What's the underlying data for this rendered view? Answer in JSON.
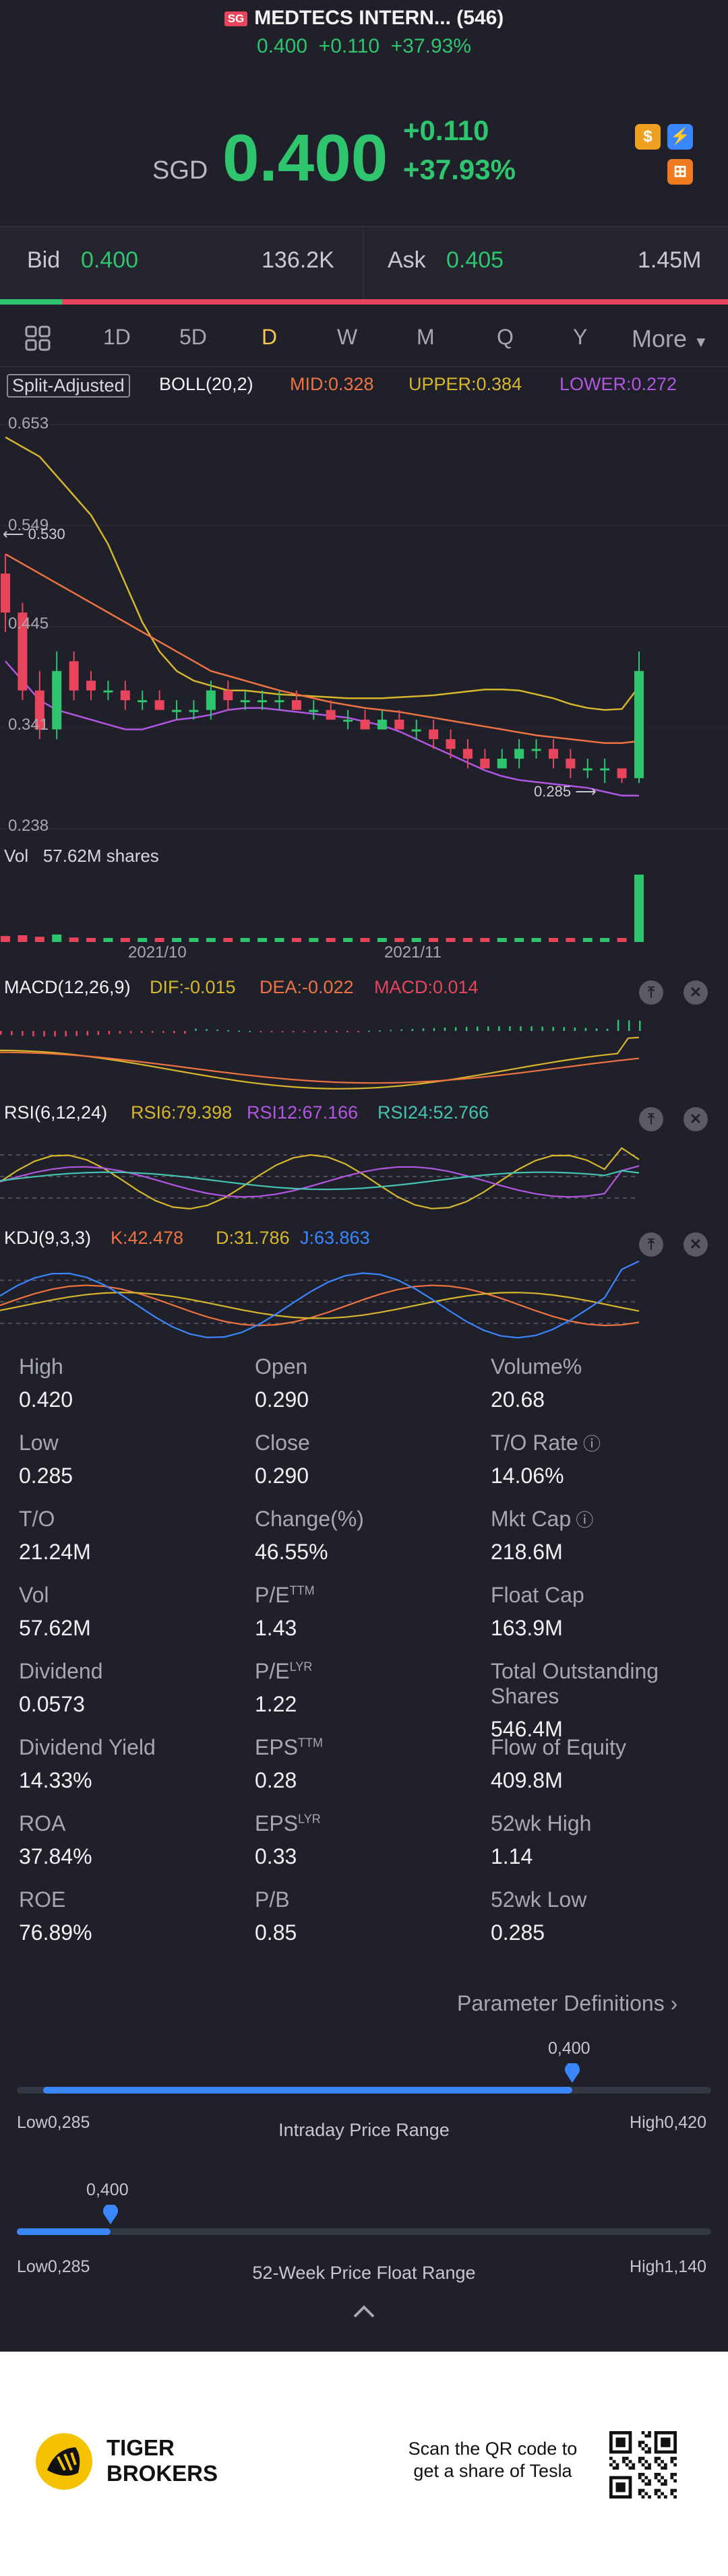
{
  "header": {
    "market_badge": "SG",
    "title": "MEDTECS INTERN... (546)",
    "price": "0.400",
    "change": "+0.110",
    "change_pct": "+37.93%",
    "currency": "SGD"
  },
  "bid_ask": {
    "bid_label": "Bid",
    "bid_price": "0.400",
    "bid_size": "136.2K",
    "ask_label": "Ask",
    "ask_price": "0.405",
    "ask_size": "1.45M"
  },
  "tabs": [
    "1D",
    "5D",
    "D",
    "W",
    "M",
    "Q",
    "Y",
    "More"
  ],
  "active_tab": "D",
  "chart_toolbar": {
    "adjust": "Split-Adjusted",
    "boll": "BOLL(20,2)",
    "mid": "MID:0.328",
    "upper": "UPPER:0.384",
    "lower": "LOWER:0.272"
  },
  "chart_data": [
    {
      "type": "candlestick",
      "title": "",
      "y_ticks": [
        "0.653",
        "0.549",
        "0.445",
        "0.341",
        "0.238"
      ],
      "ylim": [
        0.238,
        0.653
      ],
      "x_ticks": [
        "2021/10",
        "2021/11"
      ],
      "markers": {
        "high": "0.530",
        "low": "0.285"
      },
      "candles": [
        {
          "o": 0.5,
          "c": 0.46,
          "h": 0.52,
          "l": 0.44
        },
        {
          "o": 0.46,
          "c": 0.38,
          "h": 0.47,
          "l": 0.37
        },
        {
          "o": 0.38,
          "c": 0.34,
          "h": 0.4,
          "l": 0.33
        },
        {
          "o": 0.34,
          "c": 0.4,
          "h": 0.42,
          "l": 0.33
        },
        {
          "o": 0.41,
          "c": 0.38,
          "h": 0.42,
          "l": 0.37
        },
        {
          "o": 0.39,
          "c": 0.38,
          "h": 0.4,
          "l": 0.37
        },
        {
          "o": 0.38,
          "c": 0.38,
          "h": 0.39,
          "l": 0.37
        },
        {
          "o": 0.38,
          "c": 0.37,
          "h": 0.39,
          "l": 0.36
        },
        {
          "o": 0.37,
          "c": 0.37,
          "h": 0.38,
          "l": 0.36
        },
        {
          "o": 0.37,
          "c": 0.36,
          "h": 0.38,
          "l": 0.36
        },
        {
          "o": 0.36,
          "c": 0.36,
          "h": 0.37,
          "l": 0.35
        },
        {
          "o": 0.36,
          "c": 0.36,
          "h": 0.37,
          "l": 0.35
        },
        {
          "o": 0.36,
          "c": 0.38,
          "h": 0.39,
          "l": 0.35
        },
        {
          "o": 0.38,
          "c": 0.37,
          "h": 0.39,
          "l": 0.36
        },
        {
          "o": 0.37,
          "c": 0.37,
          "h": 0.38,
          "l": 0.36
        },
        {
          "o": 0.37,
          "c": 0.37,
          "h": 0.38,
          "l": 0.36
        },
        {
          "o": 0.37,
          "c": 0.37,
          "h": 0.38,
          "l": 0.36
        },
        {
          "o": 0.37,
          "c": 0.36,
          "h": 0.38,
          "l": 0.36
        },
        {
          "o": 0.36,
          "c": 0.36,
          "h": 0.37,
          "l": 0.35
        },
        {
          "o": 0.36,
          "c": 0.35,
          "h": 0.37,
          "l": 0.35
        },
        {
          "o": 0.35,
          "c": 0.35,
          "h": 0.36,
          "l": 0.34
        },
        {
          "o": 0.35,
          "c": 0.34,
          "h": 0.36,
          "l": 0.34
        },
        {
          "o": 0.34,
          "c": 0.35,
          "h": 0.36,
          "l": 0.34
        },
        {
          "o": 0.35,
          "c": 0.34,
          "h": 0.36,
          "l": 0.34
        },
        {
          "o": 0.34,
          "c": 0.34,
          "h": 0.35,
          "l": 0.33
        },
        {
          "o": 0.34,
          "c": 0.33,
          "h": 0.35,
          "l": 0.32
        },
        {
          "o": 0.33,
          "c": 0.32,
          "h": 0.34,
          "l": 0.31
        },
        {
          "o": 0.32,
          "c": 0.31,
          "h": 0.33,
          "l": 0.3
        },
        {
          "o": 0.31,
          "c": 0.3,
          "h": 0.32,
          "l": 0.3
        },
        {
          "o": 0.3,
          "c": 0.31,
          "h": 0.32,
          "l": 0.3
        },
        {
          "o": 0.31,
          "c": 0.32,
          "h": 0.33,
          "l": 0.3
        },
        {
          "o": 0.32,
          "c": 0.32,
          "h": 0.33,
          "l": 0.31
        },
        {
          "o": 0.32,
          "c": 0.31,
          "h": 0.33,
          "l": 0.3
        },
        {
          "o": 0.31,
          "c": 0.3,
          "h": 0.32,
          "l": 0.29
        },
        {
          "o": 0.3,
          "c": 0.3,
          "h": 0.31,
          "l": 0.29
        },
        {
          "o": 0.3,
          "c": 0.3,
          "h": 0.31,
          "l": 0.285
        },
        {
          "o": 0.3,
          "c": 0.29,
          "h": 0.3,
          "l": 0.285
        },
        {
          "o": 0.29,
          "c": 0.4,
          "h": 0.42,
          "l": 0.285
        }
      ],
      "boll_upper": [
        0.64,
        0.63,
        0.62,
        0.6,
        0.58,
        0.56,
        0.53,
        0.49,
        0.45,
        0.42,
        0.4,
        0.39,
        0.385,
        0.38,
        0.38,
        0.378,
        0.376,
        0.375,
        0.374,
        0.373,
        0.372,
        0.372,
        0.372,
        0.373,
        0.374,
        0.375,
        0.377,
        0.379,
        0.381,
        0.381,
        0.38,
        0.376,
        0.372,
        0.366,
        0.362,
        0.36,
        0.361,
        0.384
      ],
      "boll_mid": [
        0.52,
        0.51,
        0.5,
        0.49,
        0.48,
        0.47,
        0.46,
        0.45,
        0.44,
        0.43,
        0.42,
        0.41,
        0.4,
        0.395,
        0.39,
        0.385,
        0.38,
        0.376,
        0.372,
        0.368,
        0.365,
        0.362,
        0.36,
        0.358,
        0.355,
        0.352,
        0.349,
        0.346,
        0.343,
        0.34,
        0.337,
        0.334,
        0.332,
        0.33,
        0.328,
        0.326,
        0.326,
        0.328
      ],
      "boll_lower": [
        0.41,
        0.39,
        0.37,
        0.36,
        0.355,
        0.35,
        0.345,
        0.34,
        0.34,
        0.345,
        0.35,
        0.352,
        0.355,
        0.36,
        0.362,
        0.362,
        0.36,
        0.358,
        0.356,
        0.354,
        0.352,
        0.348,
        0.344,
        0.338,
        0.33,
        0.322,
        0.314,
        0.306,
        0.298,
        0.292,
        0.288,
        0.286,
        0.284,
        0.282,
        0.28,
        0.276,
        0.272,
        0.272
      ]
    }
  ],
  "volume": {
    "label": "Vol",
    "value": "57.62M shares",
    "bars": [
      0.8,
      0.9,
      0.7,
      1.0,
      0.6,
      0.5,
      0.5,
      0.4,
      0.4,
      0.4,
      0.3,
      0.3,
      0.5,
      0.4,
      0.3,
      0.3,
      0.3,
      0.4,
      0.3,
      0.3,
      0.3,
      0.3,
      0.4,
      0.3,
      0.3,
      0.3,
      0.4,
      0.4,
      0.3,
      0.4,
      0.4,
      0.3,
      0.3,
      0.4,
      0.3,
      0.3,
      0.4,
      9.0
    ]
  },
  "macd": {
    "title": "MACD(12,26,9)",
    "dif": "DIF:-0.015",
    "dea": "DEA:-0.022",
    "macd": "MACD:0.014"
  },
  "rsi": {
    "title": "RSI(6,12,24)",
    "rsi6": "RSI6:79.398",
    "rsi12": "RSI12:67.166",
    "rsi24": "RSI24:52.766"
  },
  "kdj": {
    "title": "KDJ(9,3,3)",
    "k": "K:42.478",
    "d": "D:31.786",
    "j": "J:63.863"
  },
  "colors": {
    "up": "#2ec56e",
    "down": "#e8455c",
    "upper": "#d5b62c",
    "mid": "#ee7341",
    "lower": "#b356e4",
    "accent": "#f5c451"
  },
  "stats": [
    {
      "label": "High",
      "value": "0.420"
    },
    {
      "label": "Open",
      "value": "0.290"
    },
    {
      "label": "Volume%",
      "value": "20.68"
    },
    {
      "label": "Low",
      "value": "0.285"
    },
    {
      "label": "Close",
      "value": "0.290"
    },
    {
      "label": "T/O Rate",
      "value": "14.06%"
    },
    {
      "label": "T/O",
      "value": "21.24M"
    },
    {
      "label": "Change(%)",
      "value": "46.55%"
    },
    {
      "label": "Mkt Cap",
      "value": "218.6M"
    },
    {
      "label": "Vol",
      "value": "57.62M"
    },
    {
      "label": "P/E",
      "sup": "TTM",
      "value": "1.43"
    },
    {
      "label": "Float Cap",
      "value": "163.9M"
    },
    {
      "label": "Dividend",
      "value": "0.0573"
    },
    {
      "label": "P/E",
      "sup": "LYR",
      "value": "1.22"
    },
    {
      "label": "Total Outstanding Shares",
      "value": "546.4M"
    },
    {
      "label": "Dividend Yield",
      "value": "14.33%"
    },
    {
      "label": "EPS",
      "sup": "TTM",
      "value": "0.28"
    },
    {
      "label": "Flow of Equity",
      "value": "409.8M"
    },
    {
      "label": "ROA",
      "value": "37.84%"
    },
    {
      "label": "EPS",
      "sup": "LYR",
      "value": "0.33"
    },
    {
      "label": "52wk High",
      "value": "1.14"
    },
    {
      "label": "ROE",
      "value": "76.89%"
    },
    {
      "label": "P/B",
      "value": "0.85"
    },
    {
      "label": "52wk Low",
      "value": "0.285"
    }
  ],
  "param_link": "Parameter Definitions",
  "intraday_range": {
    "label": "Intraday Price Range",
    "current": "0,400",
    "low": "Low0,285",
    "high": "High0,420",
    "position": 0.8
  },
  "week52_range": {
    "label": "52-Week Price Float Range",
    "current": "0,400",
    "low": "Low0,285",
    "high": "High1,140",
    "position": 0.135
  },
  "footer": {
    "brand_line1": "TIGER",
    "brand_line2": "BROKERS",
    "promo_line1": "Scan the QR code to",
    "promo_line2": "get a share of Tesla"
  }
}
